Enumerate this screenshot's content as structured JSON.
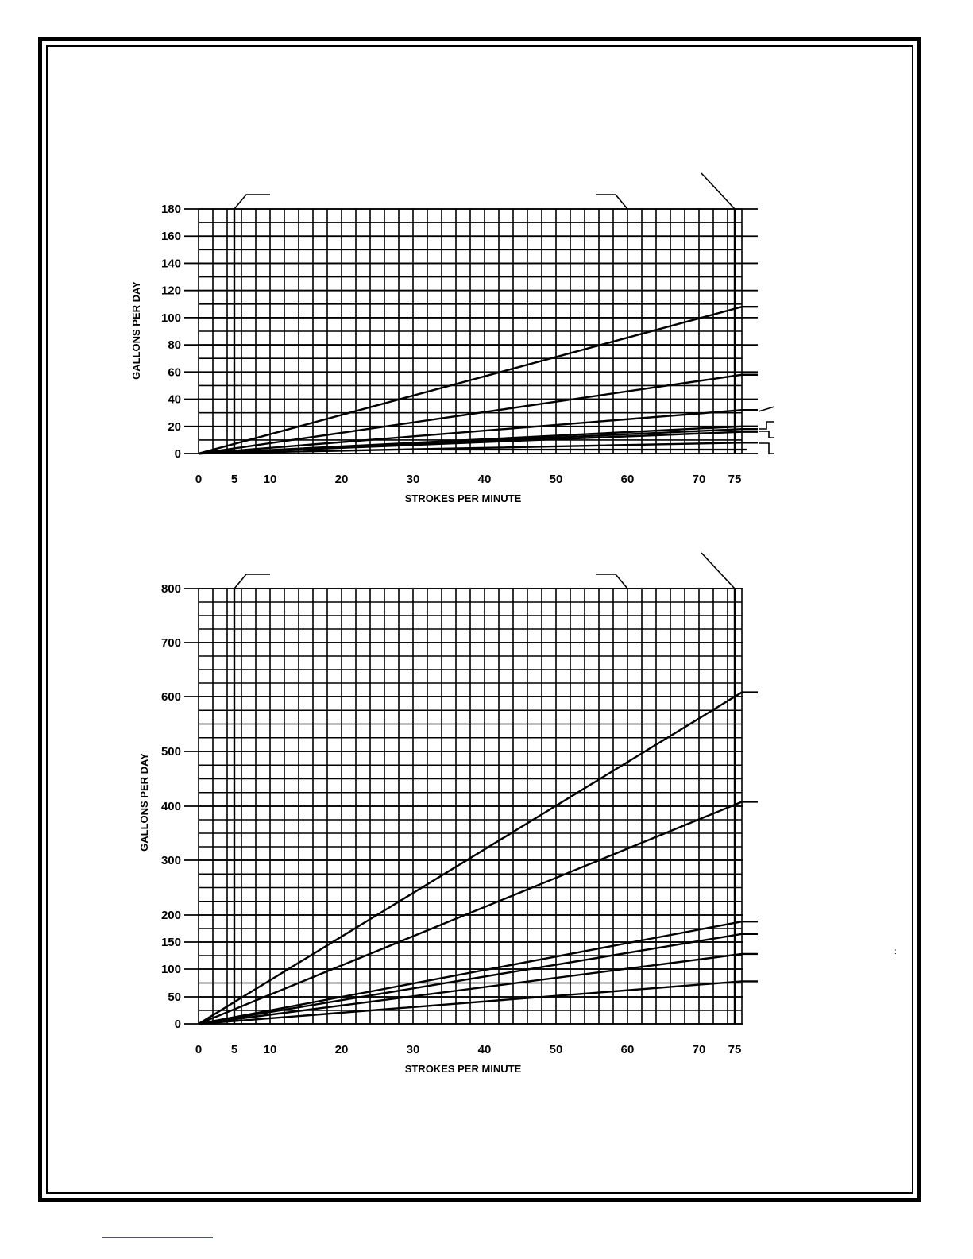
{
  "colors": {
    "ink": "#000000",
    "paper": "#ffffff",
    "footer_rule": "#3355cc"
  },
  "stray_mark": ":",
  "chart_data": [
    {
      "type": "line",
      "title": "",
      "xlabel": "STROKES PER MINUTE",
      "ylabel": "GALLONS PER DAY",
      "xlim": [
        0,
        76
      ],
      "ylim": [
        0,
        180
      ],
      "x_ticks": [
        0,
        5,
        10,
        20,
        30,
        40,
        50,
        60,
        70,
        75
      ],
      "y_ticks": [
        0,
        20,
        40,
        60,
        80,
        100,
        120,
        140,
        160,
        180
      ],
      "grid": true,
      "series": [
        {
          "x": [
            0,
            76
          ],
          "y": [
            0,
            108
          ]
        },
        {
          "x": [
            0,
            76
          ],
          "y": [
            0,
            58
          ]
        },
        {
          "x": [
            0,
            76
          ],
          "y": [
            0,
            32
          ]
        },
        {
          "x": [
            0,
            76
          ],
          "y": [
            0,
            20
          ]
        },
        {
          "x": [
            0,
            76
          ],
          "y": [
            0,
            18
          ]
        },
        {
          "x": [
            0,
            76
          ],
          "y": [
            0,
            16
          ]
        },
        {
          "x": [
            0,
            76
          ],
          "y": [
            0,
            8
          ]
        }
      ]
    },
    {
      "type": "line",
      "title": "",
      "xlabel": "STROKES PER MINUTE",
      "ylabel": "GALLONS PER DAY",
      "xlim": [
        0,
        76
      ],
      "ylim": [
        0,
        800
      ],
      "x_ticks": [
        0,
        5,
        10,
        20,
        30,
        40,
        50,
        60,
        70,
        75
      ],
      "y_ticks": [
        0,
        50,
        100,
        150,
        200,
        300,
        400,
        500,
        600,
        700,
        800
      ],
      "grid": true,
      "series": [
        {
          "x": [
            0,
            76
          ],
          "y": [
            0,
            608
          ]
        },
        {
          "x": [
            0,
            76
          ],
          "y": [
            0,
            408
          ]
        },
        {
          "x": [
            0,
            76
          ],
          "y": [
            0,
            188
          ]
        },
        {
          "x": [
            0,
            76
          ],
          "y": [
            0,
            165
          ]
        },
        {
          "x": [
            0,
            76
          ],
          "y": [
            0,
            128
          ]
        },
        {
          "x": [
            0,
            76
          ],
          "y": [
            0,
            78
          ]
        }
      ]
    }
  ]
}
